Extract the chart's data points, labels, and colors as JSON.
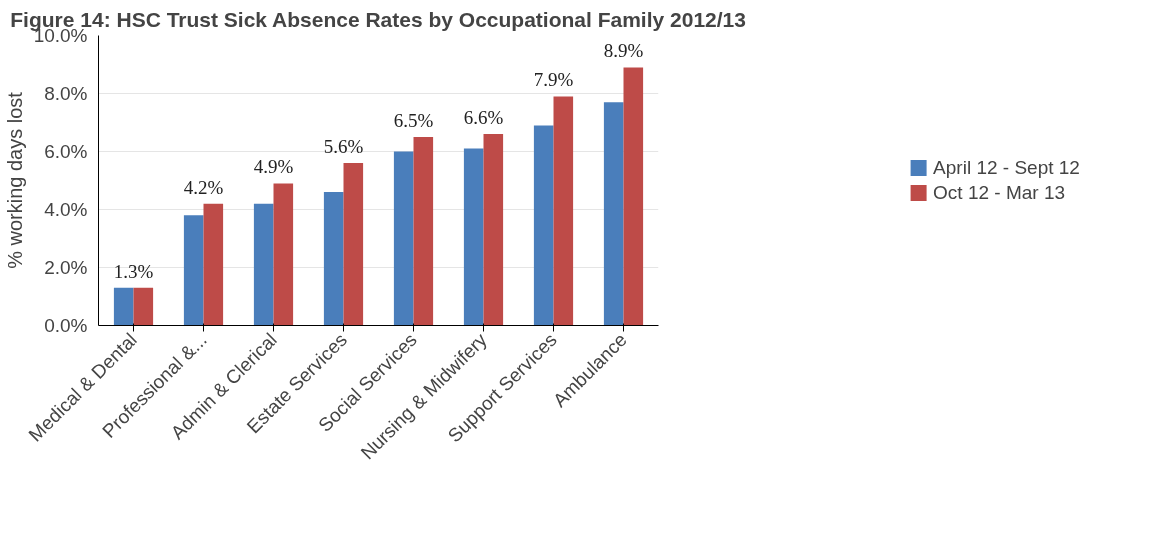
{
  "chart_data": {
    "type": "bar",
    "title": "Figure 14: HSC Trust Sick Absence Rates by Occupational Family 2012/13",
    "ylabel": "% working days lost",
    "categories": [
      "Medical & Dental",
      "Professional &...",
      "Admin & Clerical",
      "Estate Services",
      "Social Services",
      "Nursing & Midwifery",
      "Support Services",
      "Ambulance"
    ],
    "series": [
      {
        "name": "April 12 - Sept 12",
        "color": "#4a7ebb",
        "values": [
          1.3,
          3.8,
          4.2,
          4.6,
          6.0,
          6.1,
          6.9,
          7.7
        ]
      },
      {
        "name": "Oct 12 - Mar 13",
        "color": "#be4b48",
        "values": [
          1.3,
          4.2,
          4.9,
          5.6,
          6.5,
          6.6,
          7.9,
          8.9
        ],
        "value_labels": [
          "1.3%",
          "4.2%",
          "4.9%",
          "5.6%",
          "6.5%",
          "6.6%",
          "7.9%",
          "8.9%"
        ]
      }
    ],
    "ylim": [
      0,
      10
    ],
    "yticks": [
      {
        "value": 0,
        "label": "0.0%"
      },
      {
        "value": 2,
        "label": "2.0%"
      },
      {
        "value": 4,
        "label": "4.0%"
      },
      {
        "value": 6,
        "label": "6.0%"
      },
      {
        "value": 8,
        "label": "8.0%"
      },
      {
        "value": 10,
        "label": "10.0%"
      }
    ],
    "grid": "y",
    "legend": "right"
  }
}
